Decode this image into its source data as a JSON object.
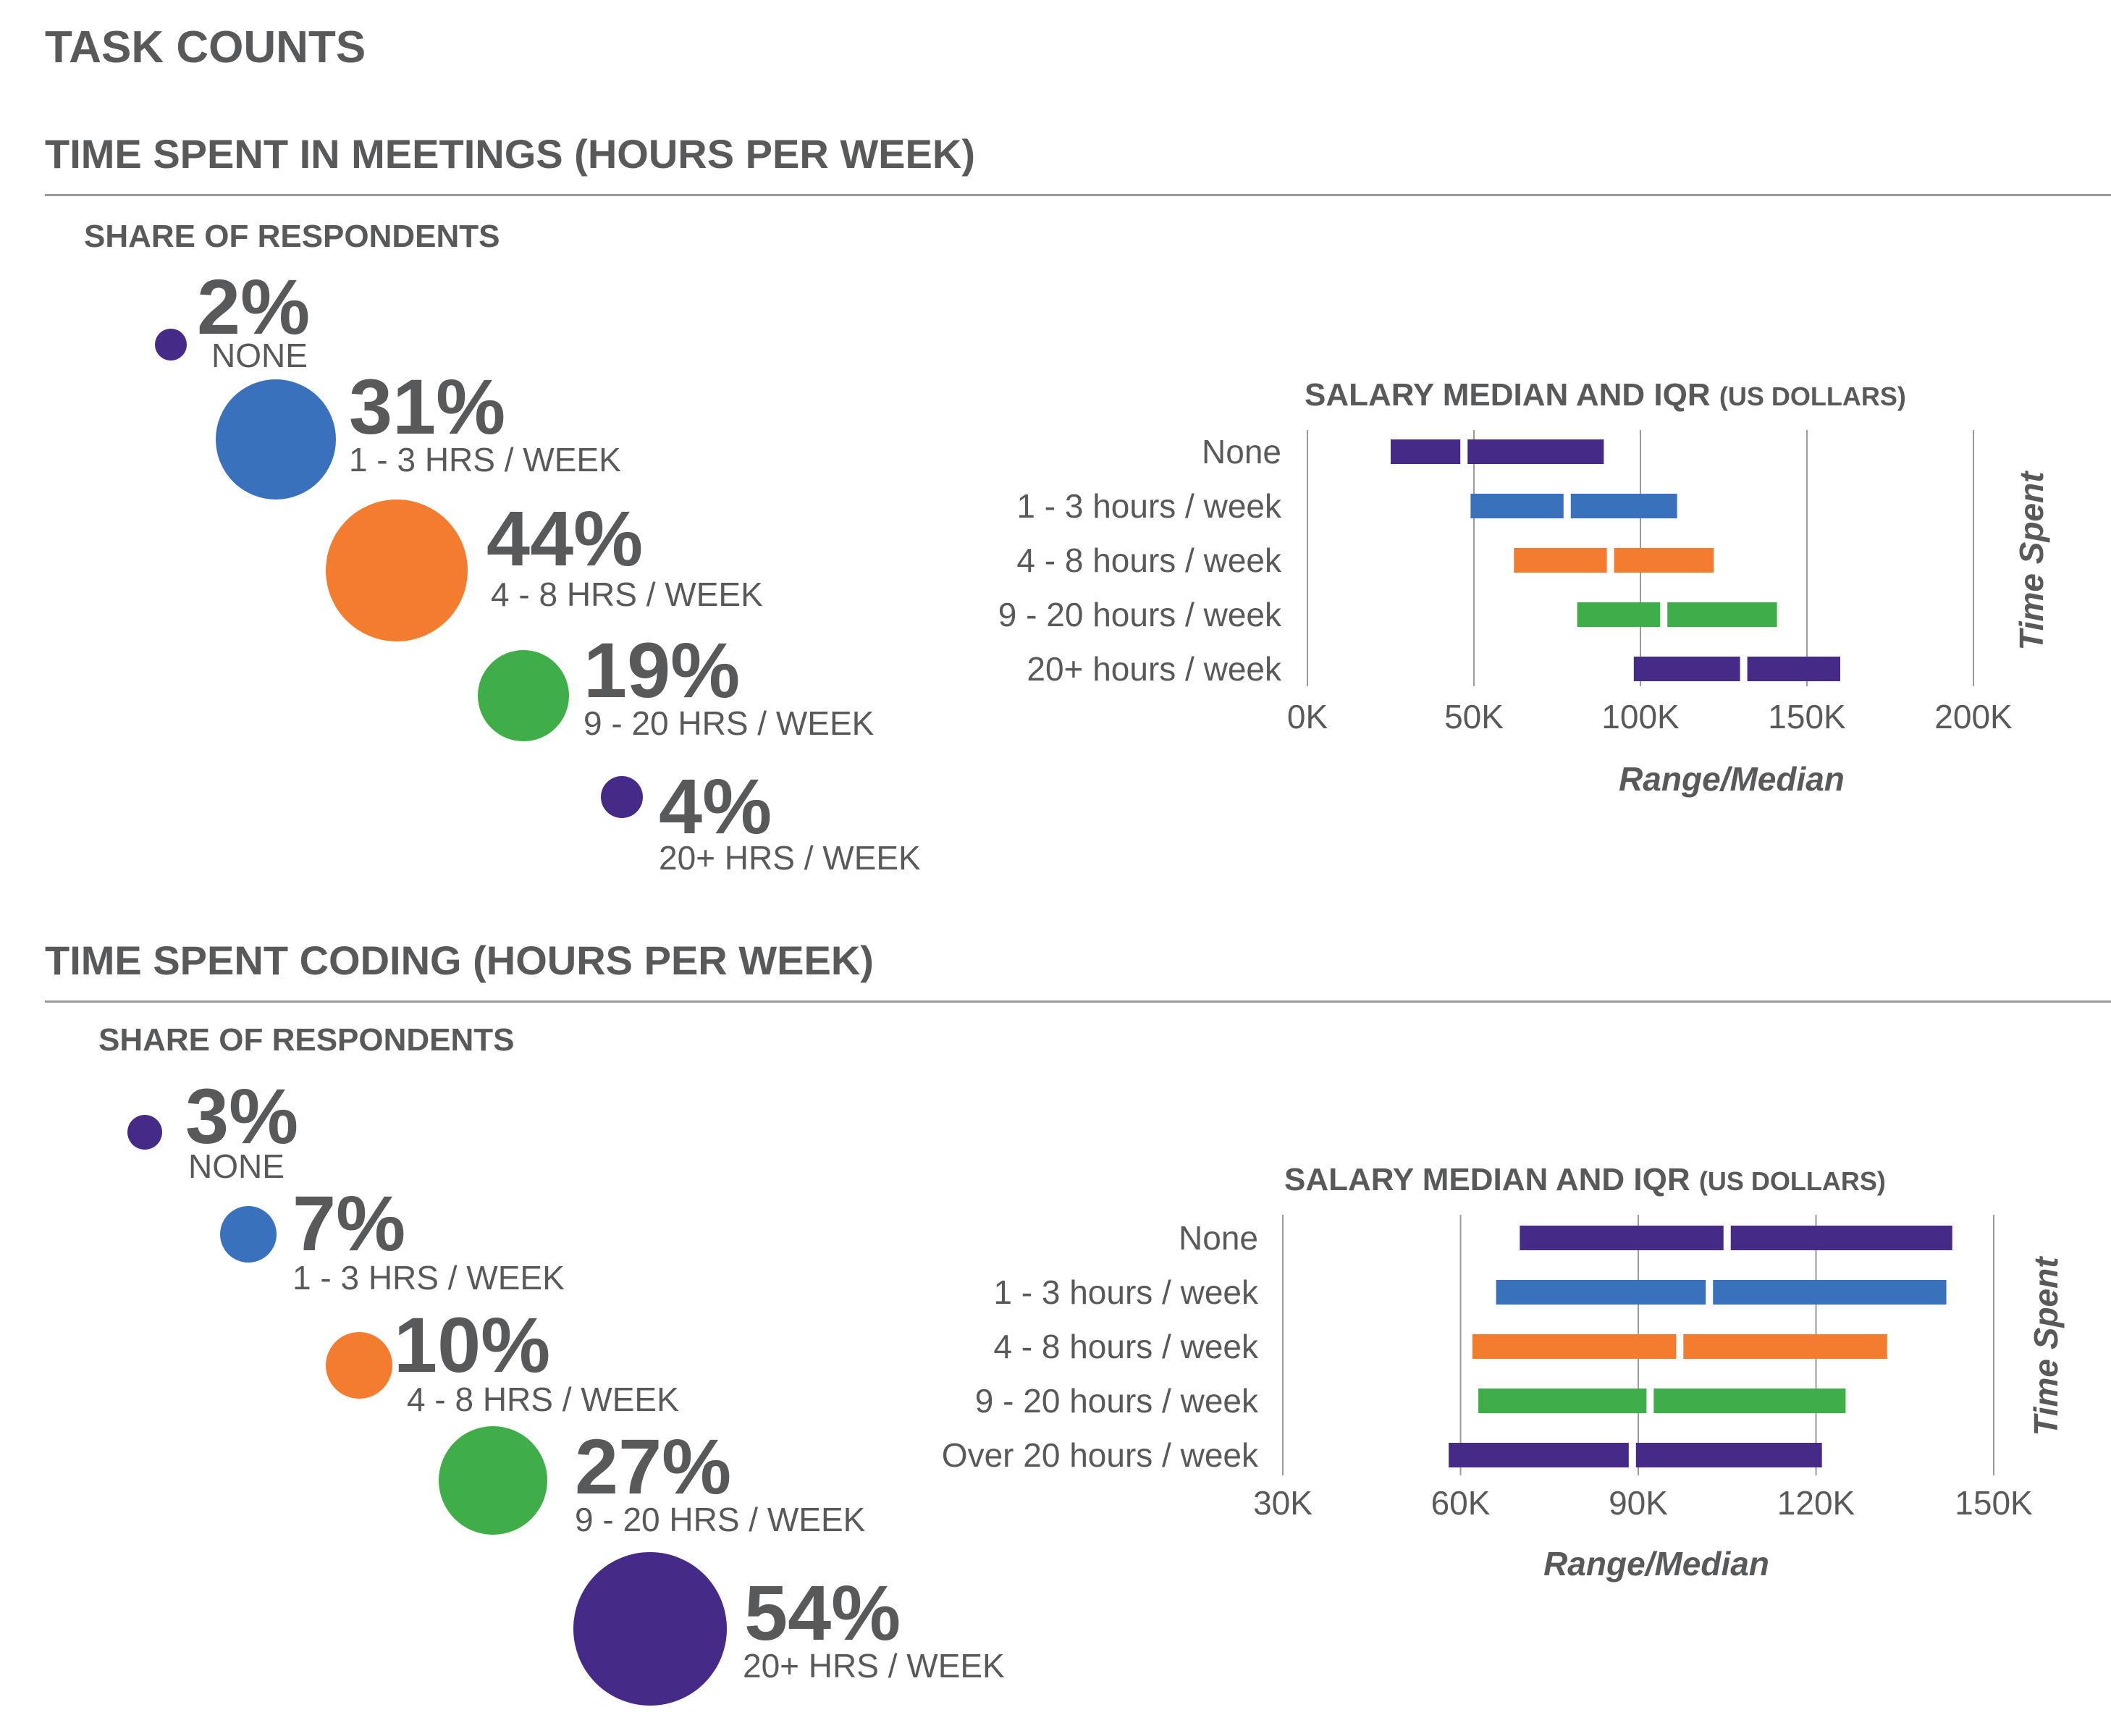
{
  "page_title": "TASK COUNTS",
  "colors": {
    "purple": "#452a87",
    "blue": "#3a71bc",
    "orange": "#f37c2e",
    "green": "#3fae49",
    "text": "#58595b",
    "grid": "#9b9b9b"
  },
  "meetings": {
    "section_title": "TIME SPENT IN MEETINGS (HOURS PER WEEK)",
    "share_label": "SHARE OF RESPONDENTS",
    "bubbles": [
      {
        "value": 2,
        "label": "2%",
        "category": "NONE",
        "color": "#452a87"
      },
      {
        "value": 31,
        "label": "31%",
        "category": "1 - 3 HRS / WEEK",
        "color": "#3a71bc"
      },
      {
        "value": 44,
        "label": "44%",
        "category": "4 - 8 HRS / WEEK",
        "color": "#f37c2e"
      },
      {
        "value": 19,
        "label": "19%",
        "category": "9 - 20 HRS / WEEK",
        "color": "#3fae49"
      },
      {
        "value": 4,
        "label": "4%",
        "category": "20+ HRS / WEEK",
        "color": "#452a87"
      }
    ],
    "salary_title": "SALARY MEDIAN AND IQR",
    "salary_unit": "(US DOLLARS)",
    "ylabel": "Time Spent",
    "xlabel": "Range/Median"
  },
  "coding": {
    "section_title": "TIME SPENT CODING (HOURS PER WEEK)",
    "share_label": "SHARE OF RESPONDENTS",
    "bubbles": [
      {
        "value": 3,
        "label": "3%",
        "category": "NONE",
        "color": "#452a87"
      },
      {
        "value": 7,
        "label": "7%",
        "category": "1 - 3 HRS / WEEK",
        "color": "#3a71bc"
      },
      {
        "value": 10,
        "label": "10%",
        "category": "4 - 8 HRS / WEEK",
        "color": "#f37c2e"
      },
      {
        "value": 27,
        "label": "27%",
        "category": "9 - 20 HRS / WEEK",
        "color": "#3fae49"
      },
      {
        "value": 54,
        "label": "54%",
        "category": "20+ HRS / WEEK",
        "color": "#452a87"
      }
    ],
    "salary_title": "SALARY MEDIAN AND IQR",
    "salary_unit": "(US DOLLARS)",
    "ylabel": "Time Spent",
    "xlabel": "Range/Median"
  },
  "chart_data": [
    {
      "type": "bar",
      "subtype": "range-median",
      "title": "SALARY MEDIAN AND IQR (US DOLLARS)",
      "xlabel": "Range/Median",
      "ylabel": "Time Spent",
      "xlim": [
        0,
        200000
      ],
      "xticks": [
        0,
        50000,
        100000,
        150000,
        200000
      ],
      "xtick_labels": [
        "0K",
        "50K",
        "100K",
        "150K",
        "200K"
      ],
      "grid": true,
      "categories": [
        "None",
        "1 - 3 hours / week",
        "4 - 8 hours / week",
        "9 - 20 hours / week",
        "20+ hours / week"
      ],
      "ranges": [
        {
          "low": 25000,
          "median": 47000,
          "high": 89000,
          "color": "#452a87"
        },
        {
          "low": 49000,
          "median": 78000,
          "high": 111000,
          "color": "#3a71bc"
        },
        {
          "low": 62000,
          "median": 91000,
          "high": 122000,
          "color": "#f37c2e"
        },
        {
          "low": 81000,
          "median": 107000,
          "high": 141000,
          "color": "#3fae49"
        },
        {
          "low": 98000,
          "median": 131000,
          "high": 160000,
          "color": "#452a87"
        }
      ]
    },
    {
      "type": "bar",
      "subtype": "range-median",
      "title": "SALARY MEDIAN AND IQR (US DOLLARS)",
      "xlabel": "Range/Median",
      "ylabel": "Time Spent",
      "xlim": [
        30000,
        150000
      ],
      "xticks": [
        30000,
        60000,
        90000,
        120000,
        150000
      ],
      "xtick_labels": [
        "30K",
        "60K",
        "90K",
        "120K",
        "150K"
      ],
      "grid": true,
      "categories": [
        "None",
        "1 - 3 hours / week",
        "4 - 8 hours / week",
        "9 - 20 hours / week",
        "Over 20 hours / week"
      ],
      "ranges": [
        {
          "low": 70000,
          "median": 105000,
          "high": 143000,
          "color": "#452a87"
        },
        {
          "low": 66000,
          "median": 102000,
          "high": 142000,
          "color": "#3a71bc"
        },
        {
          "low": 62000,
          "median": 97000,
          "high": 132000,
          "color": "#f37c2e"
        },
        {
          "low": 63000,
          "median": 92000,
          "high": 125000,
          "color": "#3fae49"
        },
        {
          "low": 58000,
          "median": 89000,
          "high": 121000,
          "color": "#452a87"
        }
      ]
    }
  ]
}
